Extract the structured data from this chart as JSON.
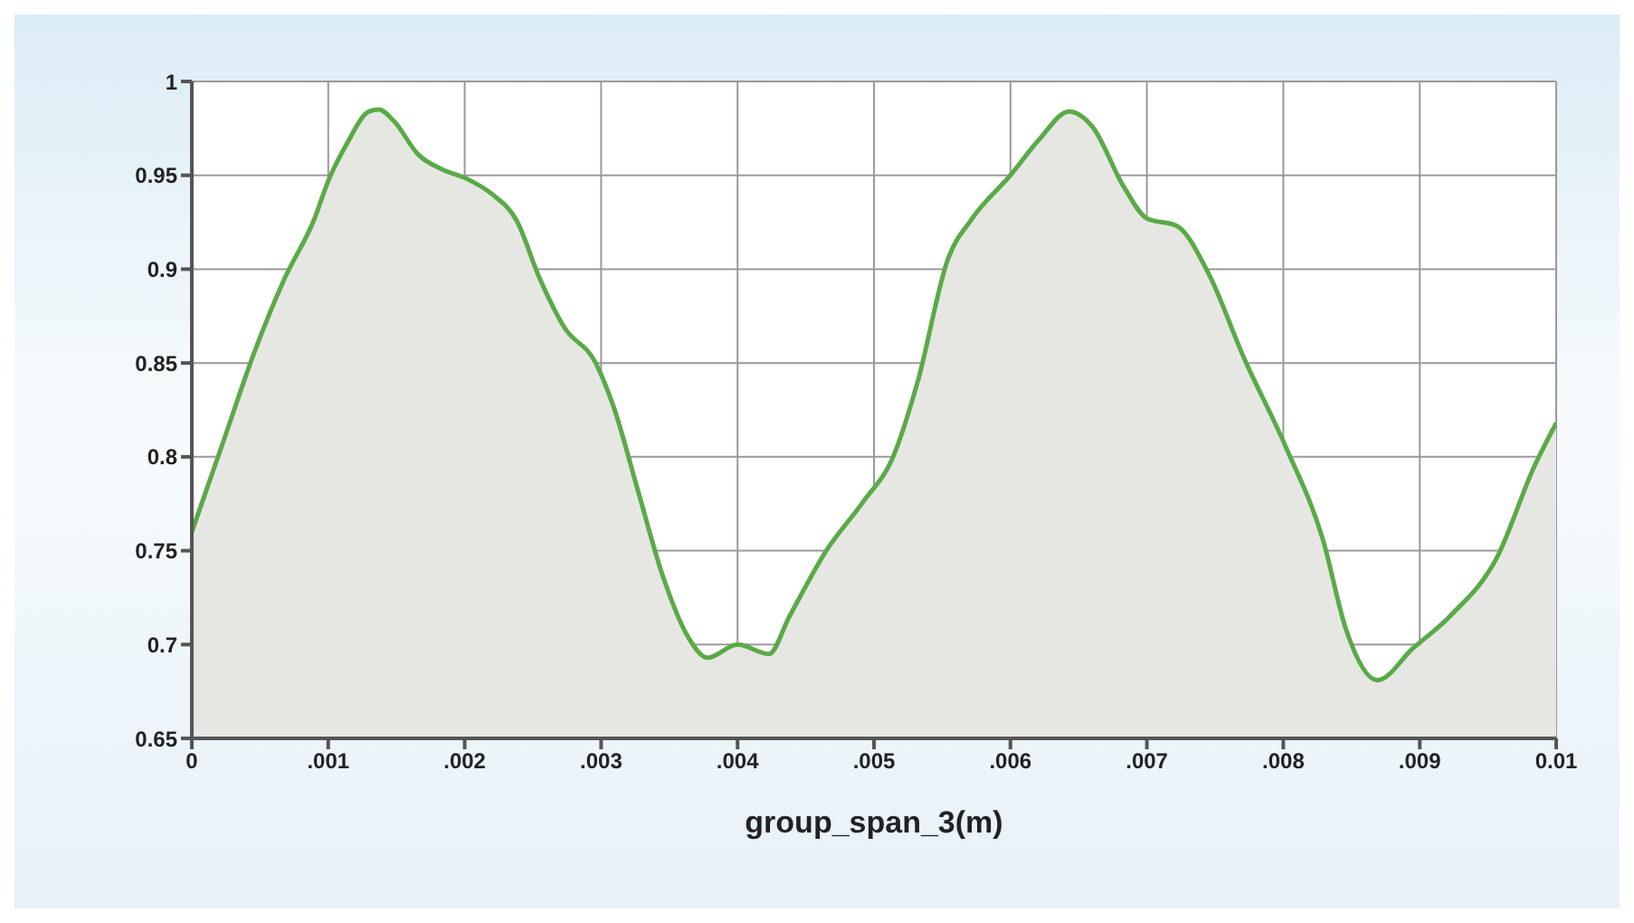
{
  "chart_data": {
    "type": "area",
    "xlabel": "group_span_3(m)",
    "x": [
      0,
      0.00023,
      0.00046,
      0.00068,
      0.0009,
      0.001,
      0.00113,
      0.0013,
      0.00137,
      0.00148,
      0.00166,
      0.00184,
      0.00202,
      0.0022,
      0.00238,
      0.00255,
      0.00273,
      0.00296,
      0.00309,
      0.00327,
      0.00345,
      0.00363,
      0.00378,
      0.004,
      0.00423,
      0.00438,
      0.00465,
      0.00492,
      0.00514,
      0.00532,
      0.00554,
      0.00572,
      0.006,
      0.00621,
      0.00643,
      0.0066,
      0.00683,
      0.007,
      0.00722,
      0.00745,
      0.00771,
      0.00802,
      0.00829,
      0.00846,
      0.00869,
      0.00895,
      0.00922,
      0.00957,
      0.00984,
      0.01
    ],
    "series": [
      {
        "color": "#5aaa48",
        "values": [
          0.76,
          0.808,
          0.856,
          0.895,
          0.927,
          0.947,
          0.966,
          0.984,
          0.985,
          0.979,
          0.961,
          0.953,
          0.948,
          0.94,
          0.926,
          0.895,
          0.869,
          0.85,
          0.827,
          0.782,
          0.737,
          0.705,
          0.693,
          0.7,
          0.695,
          0.715,
          0.75,
          0.776,
          0.8,
          0.84,
          0.905,
          0.927,
          0.95,
          0.969,
          0.984,
          0.976,
          0.944,
          0.927,
          0.923,
          0.898,
          0.853,
          0.805,
          0.756,
          0.708,
          0.681,
          0.698,
          0.715,
          0.747,
          0.795,
          0.818
        ]
      }
    ],
    "xlim": [
      0,
      0.01
    ],
    "xticks": [
      0,
      {
        "value": 0.001,
        "label": ".001"
      },
      {
        "value": 0.002,
        "label": ".002"
      },
      {
        "value": 0.003,
        "label": ".003"
      },
      {
        "value": 0.004,
        "label": ".004"
      },
      {
        "value": 0.005,
        "label": ".005"
      },
      {
        "value": 0.006,
        "label": ".006"
      },
      {
        "value": 0.007,
        "label": ".007"
      },
      {
        "value": 0.008,
        "label": ".008"
      },
      {
        "value": 0.009,
        "label": ".009"
      },
      0.01
    ],
    "ylim": [
      0.65,
      1
    ],
    "yticks": [
      0.65,
      0.7,
      0.75,
      0.8,
      0.85,
      0.9,
      0.95,
      1
    ],
    "grid": true,
    "legend": false,
    "marker": "none",
    "line_style": "solid"
  }
}
